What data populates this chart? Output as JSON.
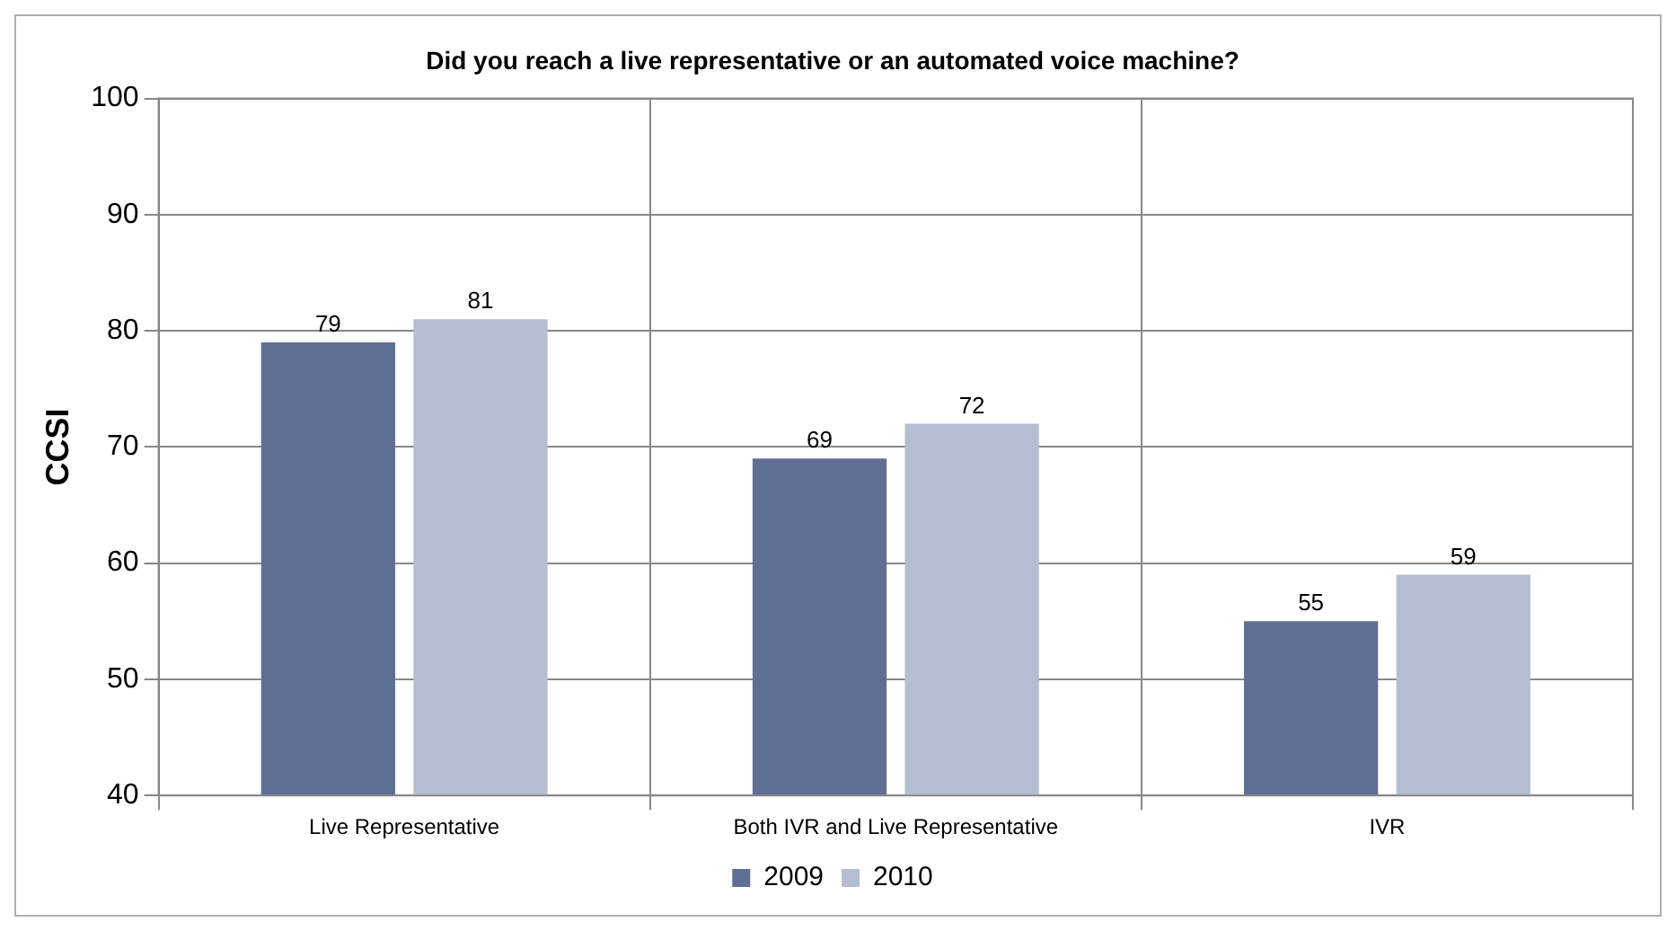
{
  "chart_data": {
    "type": "bar",
    "title": "Did you reach a live representative or an automated voice machine?",
    "ylabel": "CCSI",
    "categories": [
      "Live Representative",
      "Both IVR and Live Representative",
      "IVR"
    ],
    "series": [
      {
        "name": "2009",
        "color": "#5f6f94",
        "values": [
          79,
          69,
          55
        ]
      },
      {
        "name": "2010",
        "color": "#b5bdd3",
        "values": [
          81,
          72,
          59
        ]
      }
    ],
    "ylim": [
      40,
      100
    ],
    "yticks": [
      40,
      50,
      60,
      70,
      80,
      90,
      100
    ],
    "grid": true,
    "legend": "bottom",
    "data_labels": true
  }
}
